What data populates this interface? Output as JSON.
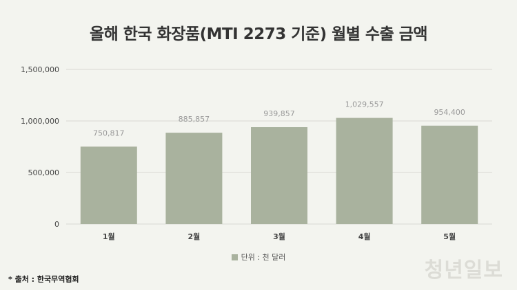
{
  "chart_data": {
    "type": "bar",
    "title": "올해 한국 화장품(MTI 2273 기준) 월별 수출 금액",
    "categories": [
      "1월",
      "2월",
      "3월",
      "4월",
      "5월"
    ],
    "values": [
      750817,
      885857,
      939857,
      1029557,
      954400
    ],
    "value_labels": [
      "750,817",
      "885,857",
      "939,857",
      "1,029,557",
      "954,400"
    ],
    "yticks": [
      0,
      500000,
      1000000,
      1500000
    ],
    "ytick_labels": [
      "0",
      "500,000",
      "1,000,000",
      "1,500,000"
    ],
    "ylim": [
      0,
      1500000
    ],
    "grid": true,
    "legend": "bottom-center",
    "legend_label": "단위 : 천 달러",
    "bar_color": "#a9b29e"
  },
  "source": "* 출처 : 한국무역협회",
  "logo_text": "청년일보",
  "colors": {
    "background": "#f3f4ef",
    "bar": "#a9b29e",
    "grid": "#d8d9d3",
    "axis_text": "#444444",
    "value_text": "#999999"
  }
}
